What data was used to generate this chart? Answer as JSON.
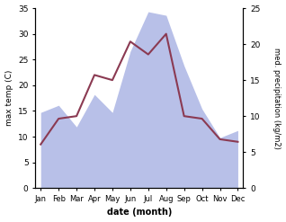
{
  "months": [
    "Jan",
    "Feb",
    "Mar",
    "Apr",
    "May",
    "Jun",
    "Jul",
    "Aug",
    "Sep",
    "Oct",
    "Nov",
    "Dec"
  ],
  "temp_max": [
    8.5,
    13.5,
    14.0,
    22.0,
    21.0,
    28.5,
    26.0,
    30.0,
    14.0,
    13.5,
    9.5,
    9.0
  ],
  "precip": [
    10.5,
    11.5,
    8.5,
    13.0,
    10.5,
    19.0,
    24.5,
    24.0,
    17.0,
    11.0,
    7.0,
    8.0
  ],
  "temp_color": "#8b3a52",
  "precip_fill_color": "#b8c0e8",
  "temp_ylim": [
    0,
    35
  ],
  "precip_ylim": [
    0,
    25
  ],
  "temp_yticks": [
    0,
    5,
    10,
    15,
    20,
    25,
    30,
    35
  ],
  "precip_yticks": [
    0,
    5,
    10,
    15,
    20,
    25
  ],
  "xlabel": "date (month)",
  "ylabel_left": "max temp (C)",
  "ylabel_right": "med. precipitation (kg/m2)",
  "background_color": "#ffffff"
}
